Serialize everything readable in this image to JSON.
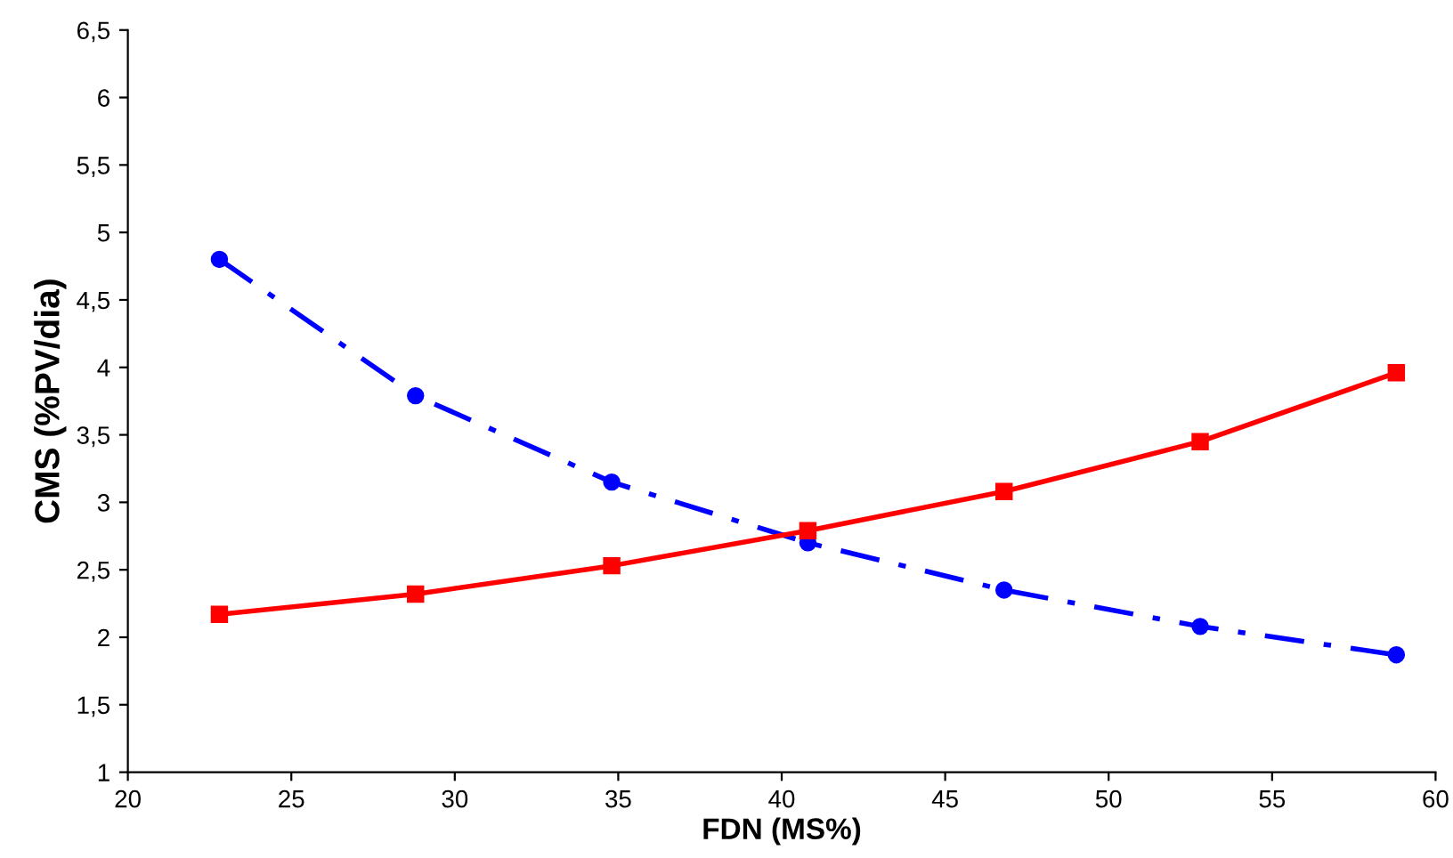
{
  "chart_data": {
    "type": "line",
    "xlabel": "FDN (MS%)",
    "ylabel": "CMS (%PV/dia)",
    "xlim": [
      20,
      60
    ],
    "xticks": [
      20,
      25,
      30,
      35,
      40,
      45,
      50,
      55,
      60
    ],
    "ylim": [
      1,
      6.5
    ],
    "yticks": [
      1,
      {
        "value": 1.5,
        "label": "1,5"
      },
      2,
      {
        "value": 2.5,
        "label": "2,5"
      },
      3,
      {
        "value": 3.5,
        "label": "3,5"
      },
      4,
      {
        "value": 4.5,
        "label": "4,5"
      },
      5,
      {
        "value": 5.5,
        "label": "5,5"
      },
      6,
      {
        "value": 6.5,
        "label": "6,5"
      }
    ],
    "grid": false,
    "x": [
      22.8,
      28.8,
      34.8,
      40.8,
      46.8,
      52.8,
      58.8
    ],
    "series": [
      {
        "color": "#0000ff",
        "marker": "circle",
        "line_style": "dashdot",
        "values": [
          4.8,
          3.79,
          3.15,
          2.7,
          2.35,
          2.08,
          1.87
        ]
      },
      {
        "color": "#ff0000",
        "marker": "square",
        "line_style": "solid",
        "values": [
          2.17,
          2.32,
          2.53,
          2.79,
          3.08,
          3.45,
          3.96
        ]
      }
    ]
  }
}
